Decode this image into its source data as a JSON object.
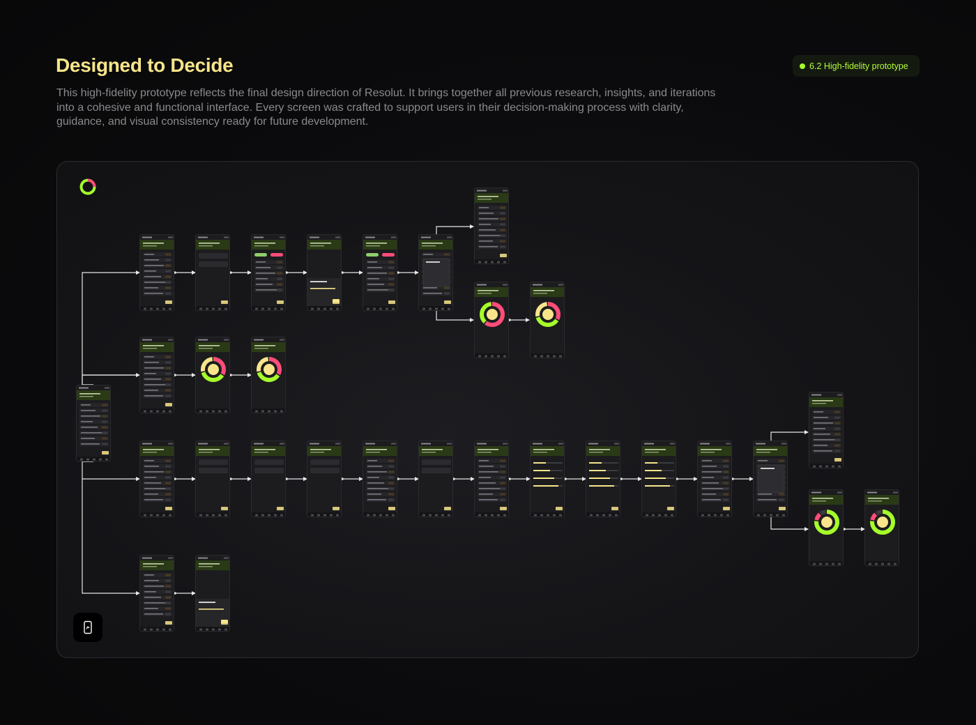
{
  "header": {
    "title": "Designed to Decide",
    "description": "This high-fidelity prototype reflects the final design direction of Resolut. It brings together all previous research, insights, and iterations into a cohesive and functional interface. Every screen was crafted to support users in their decision-making process with clarity, guidance, and visual consistency ready for future development.",
    "badge_label": "6.2 High-fidelity prototype"
  },
  "colors": {
    "accent_yellow": "#f8e58a",
    "accent_green": "#a6ff2a",
    "accent_pink": "#ff4d79",
    "surface_dark": "#141417"
  },
  "icons": {
    "logo": "resolut-ring-logo-icon",
    "prototype": "phone-prototype-icon"
  },
  "flow": {
    "screens": [
      {
        "id": "home",
        "type": "list"
      },
      {
        "id": "pros-cons-list",
        "type": "list"
      },
      {
        "id": "pros-cons-edit",
        "type": "form"
      },
      {
        "id": "pros-cons-compare",
        "type": "buttons"
      },
      {
        "id": "add-pro-sheet",
        "type": "sheet"
      },
      {
        "id": "pros-cons-filled",
        "type": "buttons"
      },
      {
        "id": "pros-cons-modal",
        "type": "modal"
      },
      {
        "id": "pros-cons-result-list",
        "type": "result"
      },
      {
        "id": "pros-cons-donut",
        "type": "donut-pink"
      },
      {
        "id": "pros-cons-donut-final",
        "type": "donut-mixed"
      },
      {
        "id": "gut-check-list",
        "type": "list"
      },
      {
        "id": "gut-check-donut",
        "type": "donut-mixed"
      },
      {
        "id": "gut-check-result",
        "type": "donut-mixed"
      },
      {
        "id": "criteria-list",
        "type": "list"
      },
      {
        "id": "criteria-name",
        "type": "form"
      },
      {
        "id": "criteria-options",
        "type": "form"
      },
      {
        "id": "criteria-define",
        "type": "form"
      },
      {
        "id": "criteria-weights",
        "type": "list"
      },
      {
        "id": "criteria-add-options",
        "type": "form"
      },
      {
        "id": "criteria-options-filled",
        "type": "list"
      },
      {
        "id": "compare-options-1",
        "type": "sliders"
      },
      {
        "id": "compare-options-2",
        "type": "sliders"
      },
      {
        "id": "compare-options-3",
        "type": "sliders"
      },
      {
        "id": "criteria-summary",
        "type": "list"
      },
      {
        "id": "criteria-modal",
        "type": "modal"
      },
      {
        "id": "criteria-result-list",
        "type": "list"
      },
      {
        "id": "criteria-donut",
        "type": "donut-green"
      },
      {
        "id": "criteria-donut-final",
        "type": "donut-green"
      },
      {
        "id": "priority-list",
        "type": "list"
      },
      {
        "id": "priority-sheet",
        "type": "sheet"
      }
    ]
  }
}
